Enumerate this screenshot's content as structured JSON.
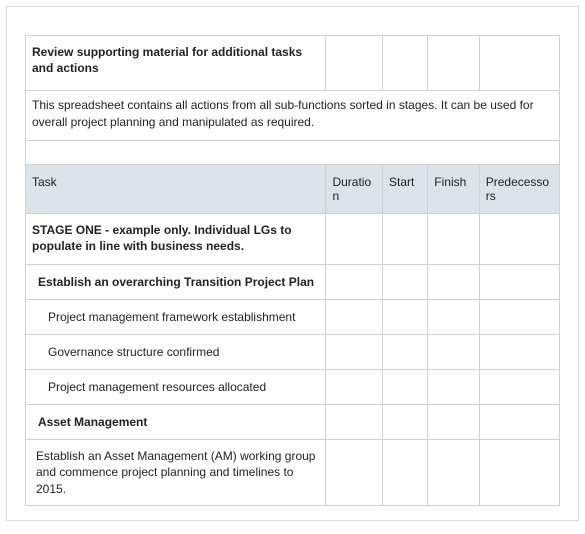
{
  "colors": {
    "header_bg": "#dde3ea",
    "border": "#d0d0d0",
    "text": "#222222",
    "background": "#ffffff",
    "outer_border": "#d9d9d9"
  },
  "columns": {
    "task": "Task",
    "duration": "Duration",
    "start": "Start",
    "finish": "Finish",
    "predecessors": "Predecessors"
  },
  "title": "Review supporting material for additional tasks and actions",
  "description": "This spreadsheet contains all actions from all sub-functions sorted in stages. It can be used for overall project planning and manipulated as required.",
  "rows": {
    "stage": "STAGE ONE - example only. Individual LGs to populate in line with business needs.",
    "establish": "Establish an overarching Transition Project Plan",
    "pmfe": "Project management framework establishment",
    "gov": "Governance structure confirmed",
    "pmra": "Project management resources allocated",
    "asset": "Asset Management",
    "asset_est": "Establish an Asset Management (AM) working group and commence project planning and timelines to 2015."
  }
}
